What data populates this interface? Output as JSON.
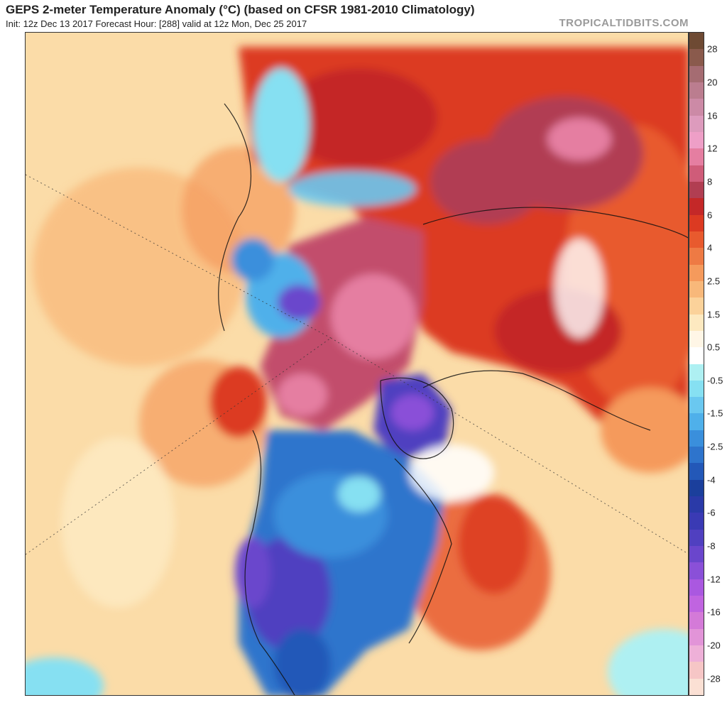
{
  "header": {
    "title": "GEPS 2-meter Temperature Anomaly (°C) (based on CFSR 1981-2010 Climatology)",
    "subtitle": "Init: 12z Dec 13 2017   Forecast Hour: [288]   valid at 12z Mon, Dec 25 2017",
    "brand": "TROPICALTIDBITS.COM"
  },
  "colorbar": {
    "unit": "°C",
    "levels": [
      {
        "label": "28",
        "color": "#6e4a33"
      },
      {
        "label": "",
        "color": "#8a5a4c"
      },
      {
        "label": "20",
        "color": "#a56c72"
      },
      {
        "label": "",
        "color": "#bb7d8f"
      },
      {
        "label": "16",
        "color": "#cc8aa6"
      },
      {
        "label": "",
        "color": "#dd9bbd"
      },
      {
        "label": "12",
        "color": "#ee9fc7"
      },
      {
        "label": "",
        "color": "#e57ea1"
      },
      {
        "label": "8",
        "color": "#cf5c79"
      },
      {
        "label": "",
        "color": "#b13e52"
      },
      {
        "label": "6",
        "color": "#c42828"
      },
      {
        "label": "",
        "color": "#dc3a22"
      },
      {
        "label": "4",
        "color": "#e85a2e"
      },
      {
        "label": "",
        "color": "#ee7a44"
      },
      {
        "label": "2.5",
        "color": "#f59a5c"
      },
      {
        "label": "",
        "color": "#f8b87a"
      },
      {
        "label": "1.5",
        "color": "#fbd29a"
      },
      {
        "label": "",
        "color": "#fde9c0"
      },
      {
        "label": "0.5",
        "color": "#fff6e6"
      },
      {
        "label": "",
        "color": "#ffffff"
      },
      {
        "label": "-0.5",
        "color": "#aef0f2"
      },
      {
        "label": "",
        "color": "#86e0f2"
      },
      {
        "label": "-1.5",
        "color": "#6ac8f0"
      },
      {
        "label": "",
        "color": "#4fb0ea"
      },
      {
        "label": "-2.5",
        "color": "#3a8fdc"
      },
      {
        "label": "",
        "color": "#2e74cc"
      },
      {
        "label": "-4",
        "color": "#2358b8"
      },
      {
        "label": "",
        "color": "#1b3f9c"
      },
      {
        "label": "-6",
        "color": "#2a3aa8"
      },
      {
        "label": "",
        "color": "#3a3ab4"
      },
      {
        "label": "-8",
        "color": "#5040c0"
      },
      {
        "label": "",
        "color": "#6a46cc"
      },
      {
        "label": "-12",
        "color": "#8a50d8"
      },
      {
        "label": "",
        "color": "#aa58e0"
      },
      {
        "label": "-16",
        "color": "#c064e0"
      },
      {
        "label": "",
        "color": "#d47ad8"
      },
      {
        "label": "-20",
        "color": "#e294d8"
      },
      {
        "label": "",
        "color": "#eeb0d8"
      },
      {
        "label": "-28",
        "color": "#f6c6c6"
      },
      {
        "label": "",
        "color": "#fbe0d4"
      }
    ]
  },
  "map": {
    "projection": "north polar stereographic",
    "colors": {
      "ocean_warm": "#fbdca8",
      "land_hot": "#c83a30",
      "arctic_pink": "#d06d92",
      "cold_blue": "#3d6ecb",
      "very_cold_purple": "#6f4fc8",
      "cyan": "#8fe3f0",
      "white": "#ffffff"
    }
  }
}
